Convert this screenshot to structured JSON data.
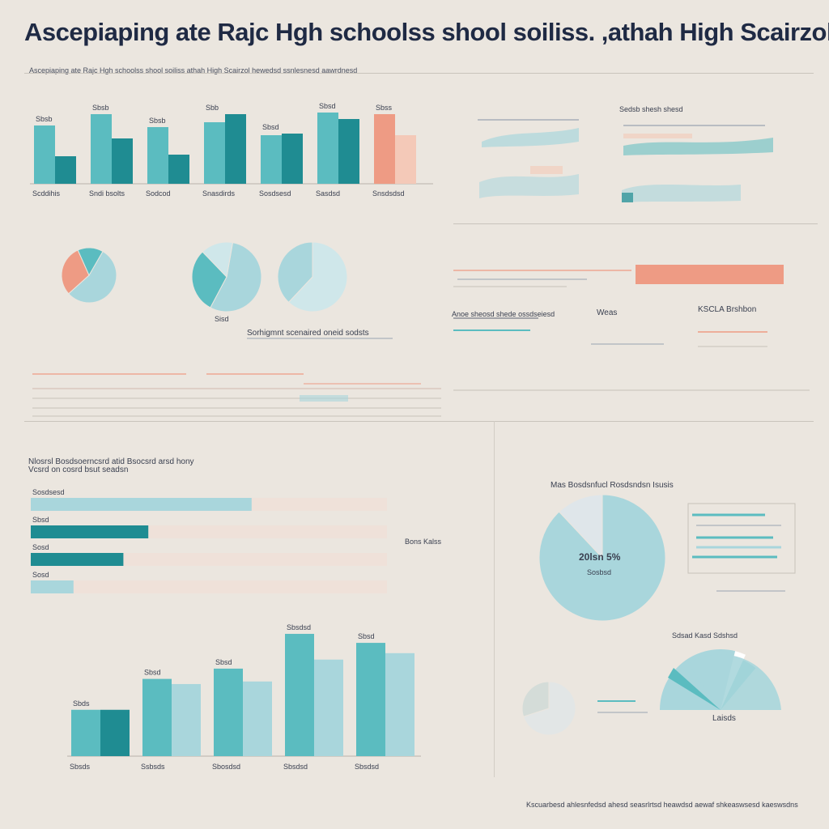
{
  "page": {
    "title": "Ascepiaping ate Rajc Hgh schoolss shool soiliss. ,athah High Scairzol",
    "subtitle": "Ascepiaping ate Rajc Hgh schoolss shool soiliss athah High Scairzol hewedsd ssnlesnesd aawrdnesd",
    "footer": "Kscuarbesd ahlesnfedsd ahesd seasrlrtsd heawdsd aewaf shkeaswsesd kaeswsdns"
  },
  "panels": {
    "mid_caption": "Sorhigmnt scenaired oneid sodsts",
    "lower_left_heading_1": "Nlosrsl Bosdsoerncsrd atid Bsocsrd arsd hony",
    "lower_left_heading_2": "Vcsrd on cosrd bsut seadsn",
    "right_mid_label_1": "KSCLA Brshbon",
    "right_mid_label_2": "Weas",
    "right_mid_label_3": "Anoe sheosd shede ossdseiesd",
    "table_label": "Sedsb shesh shesd",
    "hbar_label": "Bons Kalss"
  },
  "chart_data": [
    {
      "type": "bar",
      "title": "",
      "categories": [
        "Scddihis",
        "Sndi bsolts",
        "Sodcod",
        "Snasdirds",
        "Sosdsesd",
        "Sasdsd",
        "Snsdsdsd"
      ],
      "series": [
        {
          "name": "",
          "values": [
            72,
            86,
            70,
            76,
            60,
            88,
            86
          ]
        },
        {
          "name": "",
          "values": [
            34,
            56,
            36,
            86,
            62,
            80,
            60
          ]
        }
      ],
      "data_labels": [
        "Sbsb",
        "Sbsb",
        "Sbsb",
        "Sbb",
        "Sbsd",
        "Sbsd",
        "Sbss"
      ],
      "ylim": [
        0,
        100
      ]
    },
    {
      "type": "pie",
      "title": "",
      "values": [
        55,
        30,
        15
      ],
      "label": "Sisd"
    },
    {
      "type": "pie",
      "title": "",
      "values": [
        62,
        38
      ],
      "label": ""
    },
    {
      "type": "bar",
      "orientation": "horizontal",
      "title": "",
      "categories": [
        "Sosdsesd",
        "Sbsd",
        "Sosd",
        "Sosd"
      ],
      "values": [
        62,
        33,
        26,
        12
      ],
      "ylim": [
        0,
        100
      ]
    },
    {
      "type": "bar",
      "title": "",
      "categories": [
        "Sbsds",
        "Ssbsds",
        "Sbosdsd",
        "Sbsdsd",
        "Sbsdsd"
      ],
      "series": [
        {
          "name": "",
          "values": [
            36,
            60,
            68,
            95,
            88
          ]
        },
        {
          "name": "",
          "values": [
            36,
            56,
            58,
            75,
            80
          ]
        }
      ],
      "data_labels": [
        "Sbds",
        "Sbsd",
        "Sbsd",
        "Sbsdsd",
        "Sbsd"
      ],
      "ylim": [
        0,
        100
      ]
    },
    {
      "type": "pie",
      "title": "Mas Bosdsnfucl Rosdsndsn Isusis",
      "values": [
        88,
        12
      ],
      "center_label": "20lsn 5%",
      "center_sub": "Sosbsd"
    },
    {
      "type": "pie",
      "title": "Sdsad Kasd Sdshsd",
      "values": [
        80,
        8,
        12
      ],
      "label": "Laisds"
    }
  ],
  "colors": {
    "teal": "#5bbcc0",
    "teal_dark": "#1f8c92",
    "teal_light": "#a9d6dc",
    "salmon": "#ee9b84",
    "peach": "#f4c9b8",
    "ink": "#1f2a44",
    "background": "#ebe6df"
  }
}
